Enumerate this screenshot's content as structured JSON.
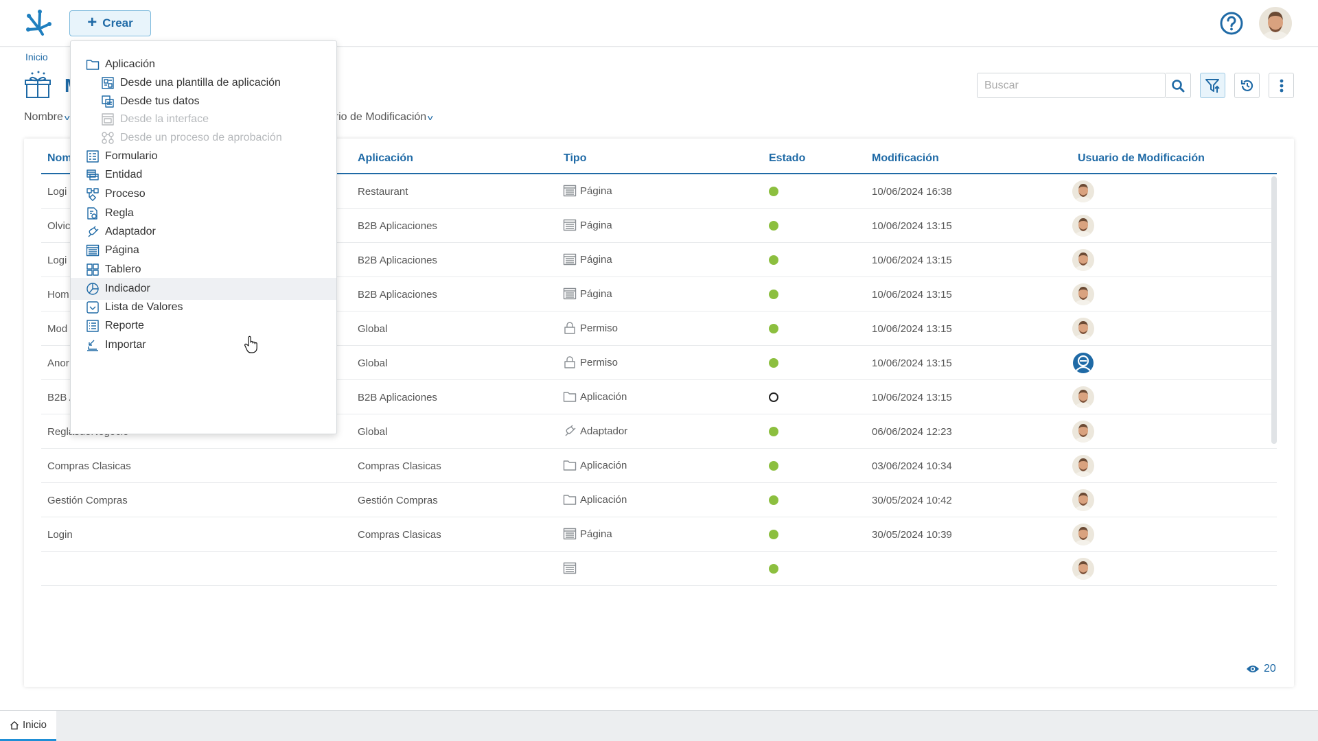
{
  "header": {
    "create_label": "Crear"
  },
  "page": {
    "breadcrumb": "Inicio",
    "title": "M",
    "sort_first": "Nombre",
    "sort_second": "uario de Modificación",
    "search_placeholder": "Buscar"
  },
  "create_menu": [
    {
      "label": "Aplicación",
      "icon": "folder-icon",
      "level": 0,
      "disabled": false
    },
    {
      "label": "Desde una plantilla de aplicación",
      "icon": "template-icon",
      "level": 1,
      "disabled": false
    },
    {
      "label": "Desde tus datos",
      "icon": "data-icon",
      "level": 1,
      "disabled": false
    },
    {
      "label": "Desde la interface",
      "icon": "interface-icon",
      "level": 1,
      "disabled": true
    },
    {
      "label": "Desde un proceso de aprobación",
      "icon": "approval-process-icon",
      "level": 1,
      "disabled": true
    },
    {
      "label": "Formulario",
      "icon": "form-icon",
      "level": 0,
      "disabled": false
    },
    {
      "label": "Entidad",
      "icon": "entity-icon",
      "level": 0,
      "disabled": false
    },
    {
      "label": "Proceso",
      "icon": "process-icon",
      "level": 0,
      "disabled": false
    },
    {
      "label": "Regla",
      "icon": "rule-icon",
      "level": 0,
      "disabled": false
    },
    {
      "label": "Adaptador",
      "icon": "adapter-icon",
      "level": 0,
      "disabled": false
    },
    {
      "label": "Página",
      "icon": "page-icon",
      "level": 0,
      "disabled": false
    },
    {
      "label": "Tablero",
      "icon": "dashboard-icon",
      "level": 0,
      "disabled": false
    },
    {
      "label": "Indicador",
      "icon": "indicator-icon",
      "level": 0,
      "disabled": false,
      "hover": true
    },
    {
      "label": "Lista de Valores",
      "icon": "value-list-icon",
      "level": 0,
      "disabled": false
    },
    {
      "label": "Reporte",
      "icon": "report-icon",
      "level": 0,
      "disabled": false
    },
    {
      "label": "Importar",
      "icon": "import-icon",
      "level": 0,
      "disabled": false
    }
  ],
  "table": {
    "headers": [
      "Nom",
      "Aplicación",
      "Tipo",
      "Estado",
      "Modificación",
      "Usuario de Modificación"
    ],
    "rows": [
      {
        "name": "Logi",
        "app": "Restaurant",
        "type": "Página",
        "type_icon": "page-icon",
        "status": "published",
        "modified": "10/06/2024 16:38",
        "user_avatar": "photo"
      },
      {
        "name": "Olvic",
        "app": "B2B Aplicaciones",
        "type": "Página",
        "type_icon": "page-icon",
        "status": "published",
        "modified": "10/06/2024 13:15",
        "user_avatar": "photo"
      },
      {
        "name": "Logi",
        "app": "B2B Aplicaciones",
        "type": "Página",
        "type_icon": "page-icon",
        "status": "published",
        "modified": "10/06/2024 13:15",
        "user_avatar": "photo"
      },
      {
        "name": "Hom",
        "app": "B2B Aplicaciones",
        "type": "Página",
        "type_icon": "page-icon",
        "status": "published",
        "modified": "10/06/2024 13:15",
        "user_avatar": "photo"
      },
      {
        "name": "Mod",
        "app": "Global",
        "type": "Permiso",
        "type_icon": "lock-icon",
        "status": "published",
        "modified": "10/06/2024 13:15",
        "user_avatar": "photo"
      },
      {
        "name": "Anor",
        "app": "Global",
        "type": "Permiso",
        "type_icon": "lock-icon",
        "status": "published",
        "modified": "10/06/2024 13:15",
        "user_avatar": "system"
      },
      {
        "name": "B2B Aplicaciones",
        "app": "B2B Aplicaciones",
        "type": "Aplicación",
        "type_icon": "folder-icon",
        "status": "draft",
        "modified": "10/06/2024 13:15",
        "user_avatar": "photo"
      },
      {
        "name": "ReglasdeNegocio",
        "app": "Global",
        "type": "Adaptador",
        "type_icon": "adapter-icon",
        "status": "published",
        "modified": "06/06/2024 12:23",
        "user_avatar": "photo"
      },
      {
        "name": "Compras Clasicas",
        "app": "Compras Clasicas",
        "type": "Aplicación",
        "type_icon": "folder-icon",
        "status": "published",
        "modified": "03/06/2024 10:34",
        "user_avatar": "photo"
      },
      {
        "name": "Gestión Compras",
        "app": "Gestión Compras",
        "type": "Aplicación",
        "type_icon": "folder-icon",
        "status": "published",
        "modified": "30/05/2024 10:42",
        "user_avatar": "photo"
      },
      {
        "name": "Login",
        "app": "Compras Clasicas",
        "type": "Página",
        "type_icon": "page-icon",
        "status": "published",
        "modified": "30/05/2024 10:39",
        "user_avatar": "photo"
      },
      {
        "name": "",
        "app": "",
        "type": "",
        "type_icon": "page-icon",
        "status": "published",
        "modified": "",
        "user_avatar": "photo"
      }
    ],
    "view_count": "20"
  },
  "tabs": [
    {
      "label": "Inicio",
      "icon": "home-icon",
      "active": true
    }
  ],
  "colors": {
    "accent": "#1f6aa6",
    "status_published": "#8cbf3f",
    "status_draft": "#ffffff",
    "hover_bg": "#eef0f3"
  }
}
